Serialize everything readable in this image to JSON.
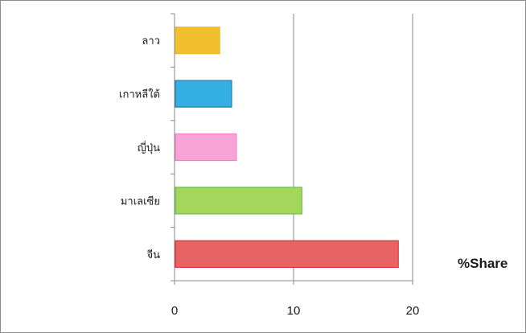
{
  "chart_data": {
    "type": "bar",
    "orientation": "horizontal",
    "categories": [
      "ลาว",
      "เกาหลีใต้",
      "ญี่ปุ่น",
      "มาเลเซีย",
      "จีน"
    ],
    "values": [
      3.8,
      4.8,
      5.2,
      10.7,
      18.8
    ],
    "colors": [
      "#f2bf2f",
      "#35aee2",
      "#f8a3d8",
      "#a3d65a",
      "#e86464"
    ],
    "edge_colors": [
      "#e8b82a",
      "#1f6f9f",
      "#f277c4",
      "#5bb84a",
      "#d81f2a"
    ],
    "xlim": [
      0,
      20
    ],
    "xticks": [
      0,
      10,
      20
    ],
    "grid": true,
    "unit_label": "%Share"
  }
}
